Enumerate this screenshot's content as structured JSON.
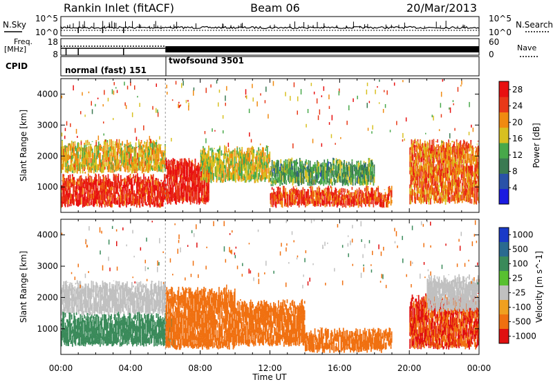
{
  "header": {
    "station": "Rankin Inlet (fitACF)",
    "beam": "Beam 06",
    "date": "20/Mar/2013"
  },
  "noise_panel": {
    "left_label": "N.Sky",
    "right_label": "N.Search",
    "left_ticks": [
      "10^5",
      "10^0"
    ],
    "right_ticks": [
      "10^5",
      "10^0"
    ]
  },
  "freq_panel": {
    "left_label_1": "Freq.",
    "left_label_2": "[MHz]",
    "left_ticks": [
      "18",
      "8"
    ],
    "right_label": "Nave",
    "right_ticks": [
      "60",
      "0"
    ]
  },
  "cpid_panel": {
    "label": "CPID",
    "segments": [
      {
        "name": "normal (fast) 151",
        "start": "00:00",
        "end": "06:00"
      },
      {
        "name": "twofsound 3501",
        "start": "06:00",
        "end": "00:00"
      }
    ]
  },
  "chart_data": [
    {
      "type": "heatmap",
      "title": "",
      "xlabel": "Time UT",
      "ylabel": "Slant Range [km]",
      "x_ticks": [
        "00:00",
        "04:00",
        "08:00",
        "12:00",
        "16:00",
        "20:00",
        "00:00"
      ],
      "xlim_hours": [
        0,
        24
      ],
      "ylim": [
        180,
        4500
      ],
      "y_ticks": [
        1000,
        2000,
        3000,
        4000
      ],
      "colorbar": {
        "label": "Power [dB]",
        "ticks": [
          4,
          8,
          12,
          16,
          20,
          24,
          28
        ],
        "range": [
          0,
          30
        ],
        "colors": [
          "#1a1ae0",
          "#2a52a8",
          "#3a7a52",
          "#48a84a",
          "#d8c020",
          "#f08a10",
          "#e83818",
          "#e81010"
        ]
      },
      "bands": [
        {
          "t0": 0.0,
          "t1": 6.0,
          "r0": 400,
          "r1": 1300,
          "value": 26
        },
        {
          "t0": 0.0,
          "t1": 6.0,
          "r0": 1500,
          "r1": 2400,
          "value": 18
        },
        {
          "t0": 6.0,
          "t1": 8.5,
          "r0": 500,
          "r1": 1800,
          "value": 27
        },
        {
          "t0": 8.0,
          "t1": 12.0,
          "r0": 1200,
          "r1": 2200,
          "value": 17
        },
        {
          "t0": 12.0,
          "t1": 19.0,
          "r0": 400,
          "r1": 900,
          "value": 24
        },
        {
          "t0": 12.0,
          "t1": 18.0,
          "r0": 1100,
          "r1": 1800,
          "value": 12
        },
        {
          "t0": 20.0,
          "t1": 24.0,
          "r0": 500,
          "r1": 2400,
          "value": 22
        }
      ]
    },
    {
      "type": "heatmap",
      "title": "",
      "xlabel": "Time UT",
      "ylabel": "Slant Range [km]",
      "x_ticks": [
        "00:00",
        "04:00",
        "08:00",
        "12:00",
        "16:00",
        "20:00",
        "00:00"
      ],
      "xlim_hours": [
        0,
        24
      ],
      "ylim": [
        180,
        4500
      ],
      "y_ticks": [
        1000,
        2000,
        3000,
        4000
      ],
      "colorbar": {
        "label": "Velocity [m s^-1]",
        "ticks": [
          "1000",
          "500",
          "100",
          "25",
          "-25",
          "-100",
          "-500",
          "-1000"
        ],
        "colors": [
          "#1a3ac8",
          "#2a6a90",
          "#3a8a5a",
          "#58c030",
          "#c0c0c0",
          "#f0a020",
          "#f07010",
          "#e01010"
        ]
      },
      "bands": [
        {
          "t0": 0.0,
          "t1": 6.0,
          "r0": 1500,
          "r1": 2400,
          "value": 0
        },
        {
          "t0": 0.0,
          "t1": 6.5,
          "r0": 500,
          "r1": 1400,
          "value": 150
        },
        {
          "t0": 6.0,
          "t1": 10.0,
          "r0": 400,
          "r1": 2200,
          "value": -300
        },
        {
          "t0": 10.0,
          "t1": 14.0,
          "r0": 500,
          "r1": 1800,
          "value": -200
        },
        {
          "t0": 14.0,
          "t1": 19.0,
          "r0": 300,
          "r1": 900,
          "value": -400
        },
        {
          "t0": 20.0,
          "t1": 24.0,
          "r0": 400,
          "r1": 2000,
          "value": -500
        },
        {
          "t0": 21.0,
          "t1": 24.0,
          "r0": 1600,
          "r1": 2600,
          "value": 0
        }
      ]
    }
  ]
}
